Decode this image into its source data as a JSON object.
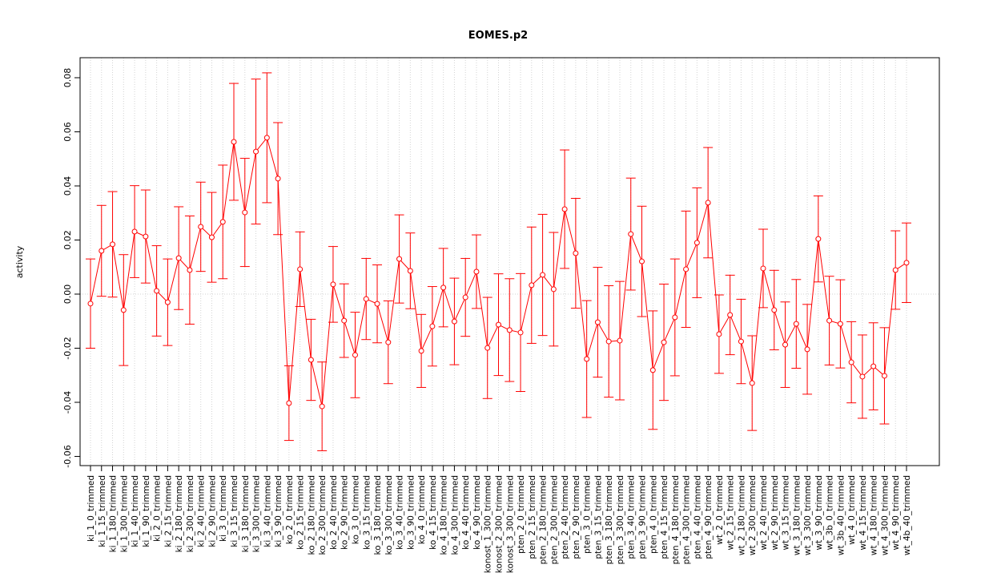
{
  "chart_data": {
    "type": "line",
    "title": "EOMES.p2",
    "y_label": "activity",
    "categories": [
      "ki_1_0_trimmed",
      "ki_1_15_trimmed",
      "ki_1_180_trimmed",
      "ki_1_300_trimmed",
      "ki_1_40_trimmed",
      "ki_1_90_trimmed",
      "ki_2_0_trimmed",
      "ki_2_15_trimmed",
      "ki_2_180_trimmed",
      "ki_2_300_trimmed",
      "ki_2_40_trimmed",
      "ki_2_90_trimmed",
      "ki_3_0_trimmed",
      "ki_3_15_trimmed",
      "ki_3_180_trimmed",
      "ki_3_300_trimmed",
      "ki_3_40_trimmed",
      "ki_3_90_trimmed",
      "ko_2_0_trimmed",
      "ko_2_15_trimmed",
      "ko_2_180_trimmed",
      "ko_2_300_trimmed",
      "ko_2_40_trimmed",
      "ko_2_90_trimmed",
      "ko_3_0_trimmed",
      "ko_3_15_trimmed",
      "ko_3_180_trimmed",
      "ko_3_300_trimmed",
      "ko_3_40_trimmed",
      "ko_3_90_trimmed",
      "ko_4_0_trimmed",
      "ko_4_15_trimmed",
      "ko_4_180_trimmed",
      "ko_4_300_trimmed",
      "ko_4_40_trimmed",
      "ko_4_90_trimmed",
      "konost_1_300_trimmed",
      "konost_2_300_trimmed",
      "konost_3_300_trimmed",
      "pten_2_0_trimmed",
      "pten_2_15_trimmed",
      "pten_2_180_trimmed",
      "pten_2_300_trimmed",
      "pten_2_40_trimmed",
      "pten_2_90_trimmed",
      "pten_3_0_trimmed",
      "pten_3_15_trimmed",
      "pten_3_180_trimmed",
      "pten_3_300_trimmed",
      "pten_3_40_trimmed",
      "pten_3_90_trimmed",
      "pten_4_0_trimmed",
      "pten_4_15_trimmed",
      "pten_4_180_trimmed",
      "pten_4_300_trimmed",
      "pten_4_40_trimmed",
      "pten_4_90_trimmed",
      "wt_2_0_trimmed",
      "wt_2_15_trimmed",
      "wt_2_180_trimmed",
      "wt_2_300_trimmed",
      "wt_2_40_trimmed",
      "wt_2_90_trimmed",
      "wt_3_15_trimmed",
      "wt_3_180_trimmed",
      "wt_3_300_trimmed",
      "wt_3_90_trimmed",
      "wt_3b_0_trimmed",
      "wt_3b_40_trimmed",
      "wt_4_0_trimmed",
      "wt_4_15_trimmed",
      "wt_4_180_trimmed",
      "wt_4_300_trimmed",
      "wt_4_90_trimmed",
      "wt_4b_40_trimmed"
    ],
    "values": [
      -0.0035,
      0.016,
      0.0184,
      -0.0059,
      0.0231,
      0.0213,
      0.0012,
      -0.003,
      0.0133,
      0.0089,
      0.0249,
      0.021,
      0.0267,
      0.0563,
      0.0302,
      0.0527,
      0.0578,
      0.0427,
      -0.0403,
      0.0092,
      -0.0243,
      -0.0415,
      0.0036,
      -0.0098,
      -0.0225,
      -0.0018,
      -0.0036,
      -0.0178,
      0.013,
      0.0086,
      -0.021,
      -0.0119,
      0.0024,
      -0.0101,
      -0.0012,
      0.0083,
      -0.0199,
      -0.0113,
      -0.0133,
      -0.0142,
      0.0033,
      0.0071,
      0.0018,
      0.0314,
      0.0151,
      -0.024,
      -0.0104,
      -0.0175,
      -0.0172,
      0.0222,
      0.0121,
      -0.0281,
      -0.0178,
      -0.0086,
      0.0092,
      0.019,
      0.0338,
      -0.0148,
      -0.0077,
      -0.0175,
      -0.0329,
      0.0095,
      -0.0059,
      -0.0187,
      -0.011,
      -0.0204,
      0.0204,
      -0.0098,
      -0.011,
      -0.0252,
      -0.0305,
      -0.0267,
      -0.0302,
      0.0089,
      0.0116
    ],
    "errors": [
      0.0165,
      0.0168,
      0.0195,
      0.0205,
      0.017,
      0.0172,
      0.0167,
      0.016,
      0.019,
      0.02,
      0.0165,
      0.0166,
      0.021,
      0.0216,
      0.02,
      0.0268,
      0.024,
      0.0207,
      0.0138,
      0.0138,
      0.015,
      0.0164,
      0.014,
      0.0136,
      0.0158,
      0.015,
      0.0144,
      0.0153,
      0.0163,
      0.014,
      0.0135,
      0.0147,
      0.0145,
      0.016,
      0.0144,
      0.0136,
      0.0187,
      0.0188,
      0.019,
      0.0218,
      0.0215,
      0.0224,
      0.021,
      0.0219,
      0.0203,
      0.0216,
      0.0203,
      0.0206,
      0.0219,
      0.0207,
      0.0204,
      0.0219,
      0.0215,
      0.0216,
      0.0215,
      0.0203,
      0.0204,
      0.0145,
      0.0147,
      0.0156,
      0.0175,
      0.0145,
      0.0147,
      0.0158,
      0.0164,
      0.0166,
      0.0159,
      0.0164,
      0.0163,
      0.015,
      0.0154,
      0.0161,
      0.0178,
      0.0145,
      0.0147
    ],
    "color": "#ff0000",
    "ylim": [
      -0.0634,
      0.0874
    ],
    "yticks": [
      -0.06,
      -0.04,
      -0.02,
      {
        "value": 0,
        "label": "0.00"
      },
      0.02,
      0.04,
      0.06,
      0.08
    ],
    "grid": true,
    "reference_line": 0
  }
}
